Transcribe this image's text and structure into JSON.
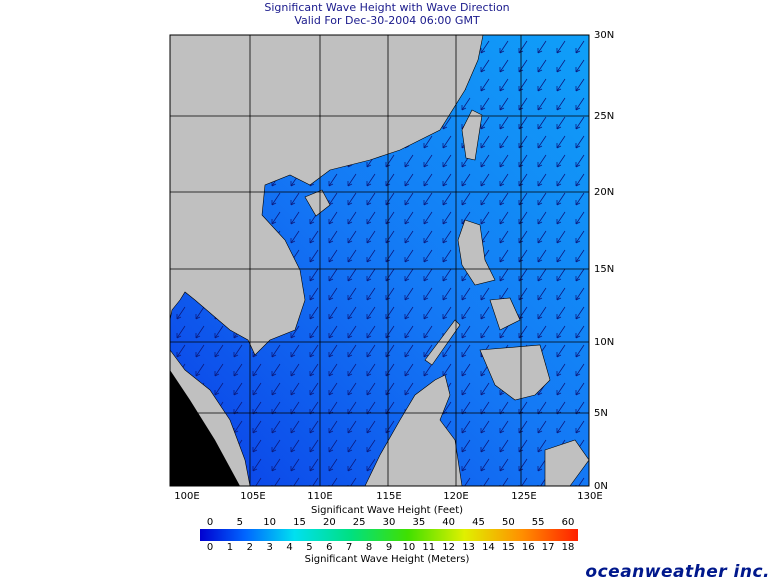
{
  "header": {
    "title": "Significant Wave Height with Wave Direction",
    "subtitle": "Valid For Dec-30-2004 06:00 GMT"
  },
  "map": {
    "lat_labels": [
      "30N",
      "25N",
      "20N",
      "15N",
      "10N",
      "5N",
      "0N"
    ],
    "lon_labels": [
      "100E",
      "105E",
      "110E",
      "115E",
      "120E",
      "125E",
      "130E"
    ]
  },
  "legend": {
    "feet_title": "Significant Wave Height (Feet)",
    "feet_ticks": [
      0,
      5,
      10,
      15,
      20,
      25,
      30,
      35,
      40,
      45,
      50,
      55,
      60
    ],
    "meters_ticks": [
      0,
      1,
      2,
      3,
      4,
      5,
      6,
      7,
      8,
      9,
      10,
      11,
      12,
      13,
      14,
      15,
      16,
      17,
      18
    ],
    "meters_title": "Significant Wave Height (Meters)"
  },
  "logo": "oceanweather inc."
}
